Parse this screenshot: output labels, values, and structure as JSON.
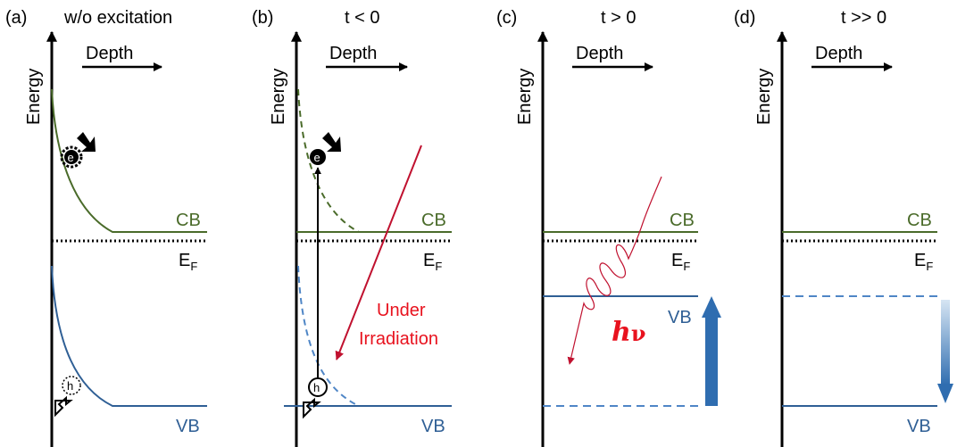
{
  "panels": [
    {
      "tag": "(a)",
      "title": "w/o excitation",
      "ylabel": "Energy",
      "xlabel": "Depth",
      "cb": "CB",
      "ef": "E",
      "ef_sub": "F",
      "vb": "VB",
      "electron": "e",
      "hole": "h"
    },
    {
      "tag": "(b)",
      "title": "t < 0",
      "ylabel": "Energy",
      "xlabel": "Depth",
      "cb": "CB",
      "ef": "E",
      "ef_sub": "F",
      "vb": "VB",
      "electron": "e",
      "hole": "h",
      "note_line1": "Under",
      "note_line2": "Irradiation"
    },
    {
      "tag": "(c)",
      "title": "t > 0",
      "ylabel": "Energy",
      "xlabel": "Depth",
      "cb": "CB",
      "ef": "E",
      "ef_sub": "F",
      "vb": "VB",
      "photon_h": "h",
      "photon_nu": "ν"
    },
    {
      "tag": "(d)",
      "title": "t >> 0",
      "ylabel": "Energy",
      "xlabel": "Depth",
      "cb": "CB",
      "ef": "E",
      "ef_sub": "F",
      "vb": "VB"
    }
  ],
  "colors": {
    "cb_band": "#4a6b2a",
    "vb_band": "#2f5f95",
    "vb_dashed": "#4f86c6",
    "irradiation": "#c0112f",
    "irradiation_text": "#e8121e",
    "shift_arrow": "#2f6db0",
    "fade_top": "#d6e5f3"
  }
}
